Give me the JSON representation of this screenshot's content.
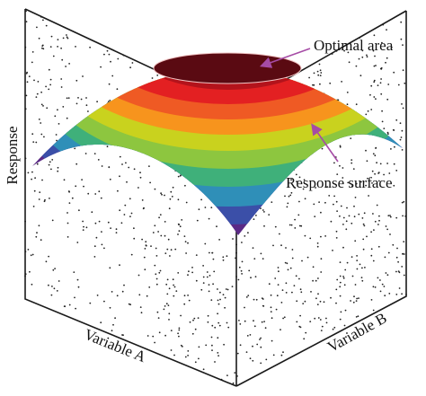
{
  "figure": {
    "annotations": {
      "optimal_area": "Optimal area",
      "response_surface": "Response surface"
    },
    "axes": {
      "vertical": "Response",
      "left_floor": "Variable A",
      "right_floor": "Variable B"
    },
    "colors": {
      "band_1": "#5a0a12",
      "band_2": "#b3131b",
      "band_3": "#e32022",
      "band_4": "#ef5a24",
      "band_5": "#f7941d",
      "band_6": "#c9d21e",
      "band_7": "#8dc63f",
      "band_8": "#3fb07a",
      "band_9": "#2f8fb8",
      "band_10": "#3b4fa8",
      "band_11": "#5b2a86",
      "arrow": "#a64ca6",
      "edges": "#1a1a1a",
      "grid_dots": "#222222"
    }
  }
}
